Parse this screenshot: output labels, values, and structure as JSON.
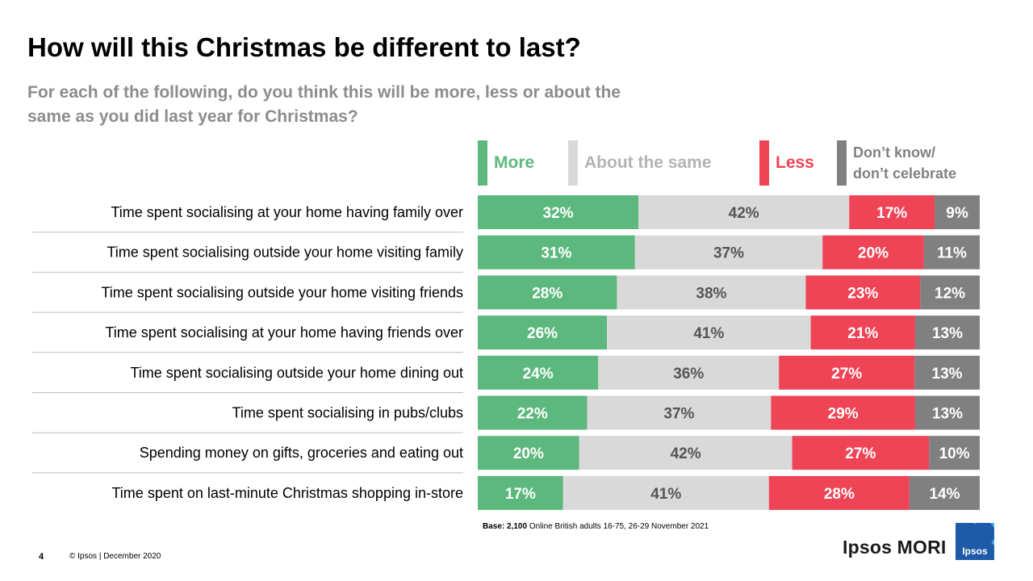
{
  "title": "How will this Christmas be different to last?",
  "subtitle": "For each of the following, do you think this will be more, less or about the same as you did last year for Christmas?",
  "legend": {
    "more": "More",
    "same": "About the same",
    "less": "Less",
    "dk_line1": "Don’t know/",
    "dk_line2": "don’t celebrate"
  },
  "colors": {
    "more": "#5cb87d",
    "same": "#d9d9d9",
    "less": "#ef4456",
    "dk": "#808080",
    "more_text": "#ffffff",
    "same_text": "#555555",
    "less_text": "#ffffff",
    "dk_text": "#ffffff"
  },
  "chart_data": {
    "type": "bar",
    "orientation": "horizontal",
    "stacked": true,
    "value_suffix": "%",
    "categories": [
      "Time spent socialising at your home having family over",
      "Time spent socialising outside your home visiting family",
      "Time spent socialising outside your home visiting friends",
      "Time spent socialising at your home having friends over",
      "Time spent socialising outside your home dining out",
      "Time spent socialising in pubs/clubs",
      "Spending money on gifts, groceries and eating out",
      "Time spent on last-minute Christmas shopping in-store"
    ],
    "series": [
      {
        "name": "More",
        "key": "more",
        "values": [
          32,
          31,
          28,
          26,
          24,
          22,
          20,
          17
        ]
      },
      {
        "name": "About the same",
        "key": "same",
        "values": [
          42,
          37,
          38,
          41,
          36,
          37,
          42,
          41
        ]
      },
      {
        "name": "Less",
        "key": "less",
        "values": [
          17,
          20,
          23,
          21,
          27,
          29,
          27,
          28
        ]
      },
      {
        "name": "Don’t know/ don’t celebrate",
        "key": "dk",
        "values": [
          9,
          11,
          12,
          13,
          13,
          13,
          10,
          14
        ]
      }
    ],
    "title": "How will this Christmas be different to last?",
    "xlabel": "",
    "ylabel": "",
    "legend_position": "top"
  },
  "base_note": {
    "label": "Base: 2,100",
    "text": " Online British adults 16-75, 26-29 November 2021"
  },
  "footer": {
    "page_number": "4",
    "copyright": "© Ipsos |  December 2020"
  },
  "brand": {
    "name": "Ipsos MORI",
    "logo_text": "Ipsos"
  }
}
